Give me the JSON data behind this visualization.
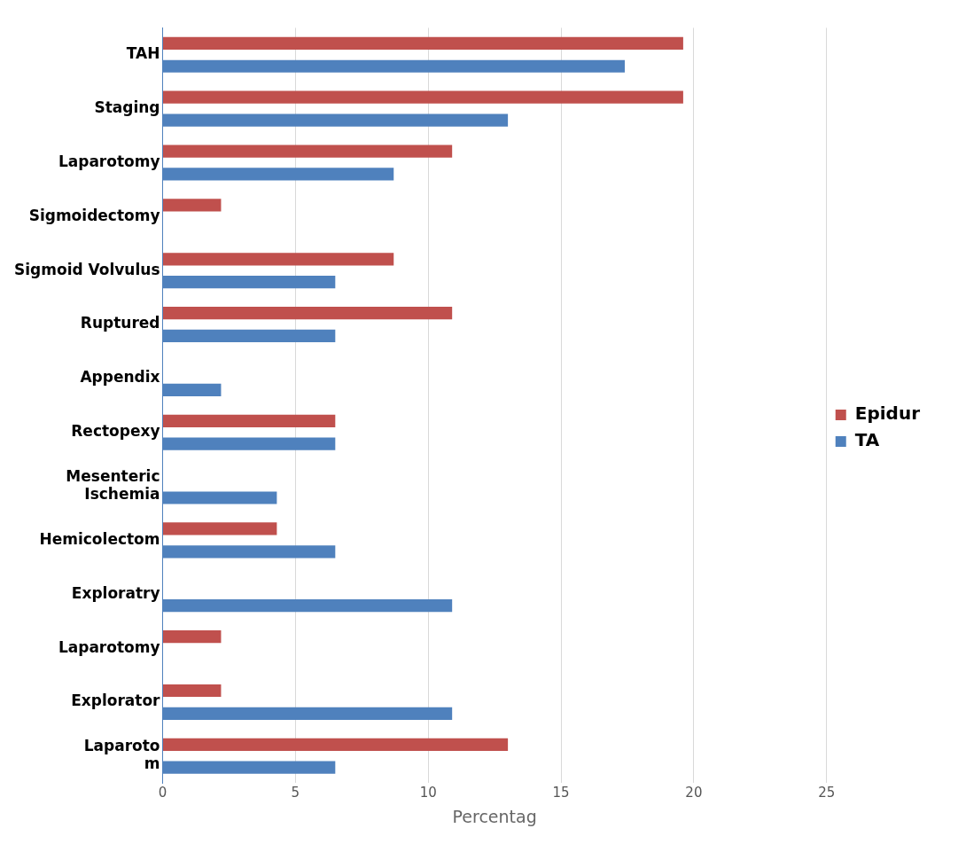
{
  "chart_data": {
    "type": "bar",
    "orientation": "horizontal",
    "xlabel": "Percentag",
    "categories": [
      "TAH",
      "Staging",
      "Laparotomy",
      "Sigmoidectomy",
      "Sigmoid Volvulus",
      "Ruptured",
      "Appendix",
      "Rectopexy",
      "Mesenteric\nIschemia",
      "Hemicolectom",
      "Exploratry",
      "Laparotomy",
      "Explorator",
      "Laparoto\nm"
    ],
    "series": [
      {
        "name": "Epidur",
        "color": "#c0504d",
        "values": [
          19.6,
          19.6,
          10.9,
          2.2,
          8.7,
          10.9,
          null,
          6.5,
          null,
          4.3,
          null,
          2.2,
          2.2,
          13.0
        ]
      },
      {
        "name": "TA",
        "color": "#4f81bd",
        "values": [
          17.4,
          13.0,
          8.7,
          null,
          6.5,
          6.5,
          2.2,
          6.5,
          4.3,
          6.5,
          10.9,
          null,
          10.9,
          6.5
        ]
      }
    ],
    "xlim": [
      0,
      25
    ],
    "xticks": [
      0,
      5,
      10,
      15,
      20,
      25
    ],
    "grid": "x",
    "legend": "right"
  }
}
